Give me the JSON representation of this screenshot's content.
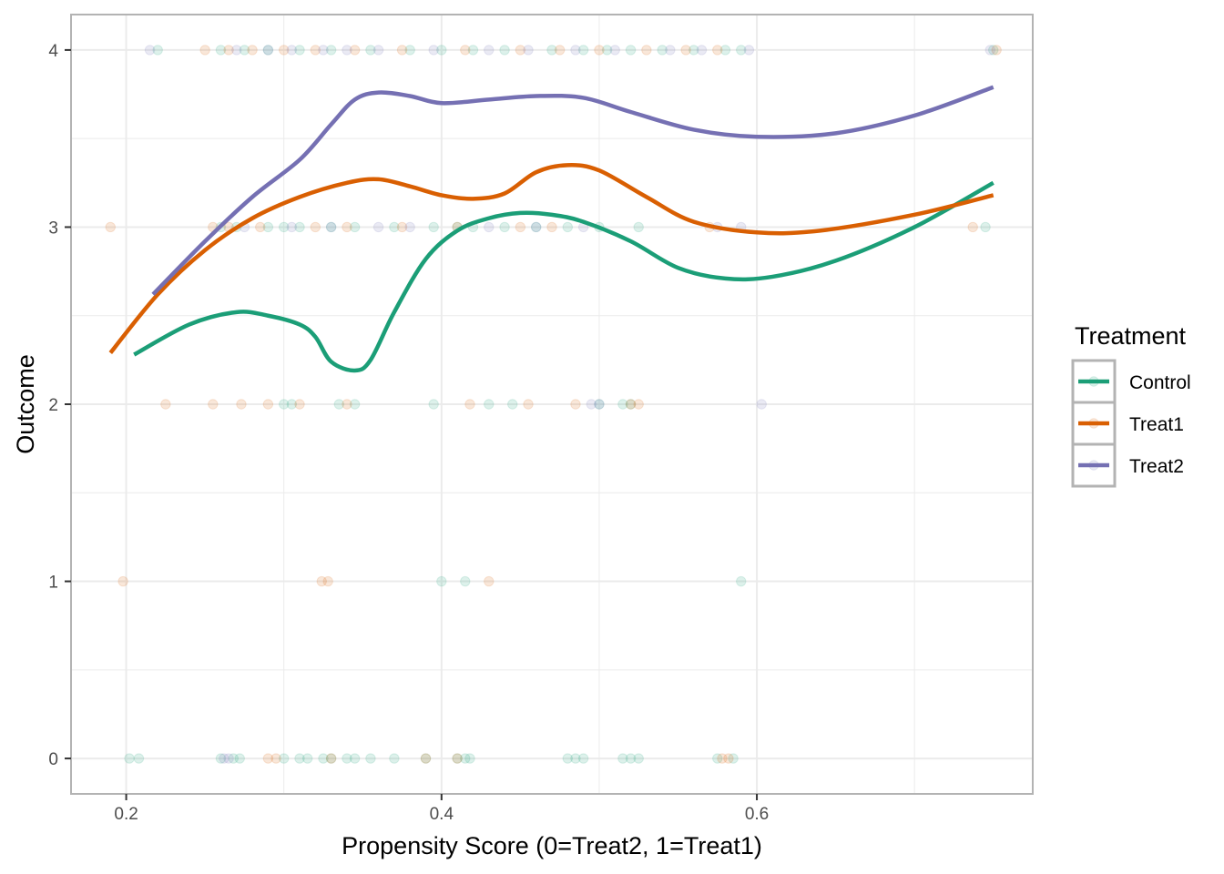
{
  "chart_data": {
    "type": "scatter",
    "xlabel": "Propensity Score (0=Treat2, 1=Treat1)",
    "ylabel": "Outcome",
    "xlim": [
      0.165,
      0.775
    ],
    "ylim": [
      -0.2,
      4.2
    ],
    "x_ticks": [
      0.2,
      0.4,
      0.6
    ],
    "x_tick_labels": [
      "0.2",
      "0.4",
      "0.6"
    ],
    "y_ticks": [
      0,
      1,
      2,
      3,
      4
    ],
    "y_tick_labels": [
      "0",
      "1",
      "2",
      "3",
      "4"
    ],
    "grid": true,
    "legend": {
      "title": "Treatment",
      "position": "right",
      "entries": [
        "Control",
        "Treat1",
        "Treat2"
      ]
    },
    "colors": {
      "Control": "#1b9e77",
      "Treat1": "#d95f02",
      "Treat2": "#7570b3"
    },
    "point_alpha": 0.15,
    "smooth_series": [
      {
        "name": "Control",
        "color": "#1b9e77",
        "x": [
          0.205,
          0.24,
          0.27,
          0.29,
          0.31,
          0.32,
          0.33,
          0.345,
          0.355,
          0.37,
          0.39,
          0.41,
          0.43,
          0.45,
          0.47,
          0.49,
          0.52,
          0.55,
          0.58,
          0.61,
          0.65,
          0.7,
          0.75
        ],
        "y": [
          2.28,
          2.45,
          2.52,
          2.5,
          2.45,
          2.38,
          2.24,
          2.19,
          2.25,
          2.52,
          2.82,
          2.98,
          3.05,
          3.08,
          3.07,
          3.03,
          2.92,
          2.77,
          2.71,
          2.72,
          2.81,
          3.0,
          3.25
        ]
      },
      {
        "name": "Treat1",
        "color": "#d95f02",
        "x": [
          0.19,
          0.22,
          0.25,
          0.28,
          0.31,
          0.34,
          0.36,
          0.38,
          0.4,
          0.42,
          0.44,
          0.46,
          0.48,
          0.5,
          0.53,
          0.56,
          0.6,
          0.64,
          0.7,
          0.75
        ],
        "y": [
          2.29,
          2.62,
          2.87,
          3.05,
          3.17,
          3.25,
          3.27,
          3.23,
          3.18,
          3.16,
          3.19,
          3.31,
          3.35,
          3.32,
          3.17,
          3.03,
          2.97,
          2.98,
          3.07,
          3.18
        ]
      },
      {
        "name": "Treat2",
        "color": "#7570b3",
        "x": [
          0.217,
          0.25,
          0.28,
          0.31,
          0.33,
          0.345,
          0.36,
          0.38,
          0.4,
          0.43,
          0.46,
          0.49,
          0.52,
          0.56,
          0.6,
          0.65,
          0.7,
          0.75
        ],
        "y": [
          2.62,
          2.92,
          3.17,
          3.38,
          3.58,
          3.72,
          3.76,
          3.74,
          3.7,
          3.72,
          3.74,
          3.73,
          3.65,
          3.55,
          3.51,
          3.53,
          3.63,
          3.79
        ]
      }
    ],
    "points": [
      {
        "name": "Control",
        "color": "#1b9e77",
        "y_level": 0,
        "x": [
          0.202,
          0.208,
          0.26,
          0.268,
          0.272,
          0.3,
          0.31,
          0.315,
          0.325,
          0.33,
          0.34,
          0.345,
          0.355,
          0.37,
          0.39,
          0.41,
          0.415,
          0.418,
          0.48,
          0.485,
          0.49,
          0.515,
          0.52,
          0.525,
          0.575,
          0.585
        ]
      },
      {
        "name": "Treat1",
        "color": "#d95f02",
        "y_level": 0,
        "x": [
          0.29,
          0.295,
          0.33,
          0.39,
          0.41,
          0.578,
          0.582
        ]
      },
      {
        "name": "Treat2",
        "color": "#7570b3",
        "y_level": 0,
        "x": [
          0.262,
          0.265
        ]
      },
      {
        "name": "Control",
        "color": "#1b9e77",
        "y_level": 1,
        "x": [
          0.4,
          0.415,
          0.59
        ]
      },
      {
        "name": "Treat1",
        "color": "#d95f02",
        "y_level": 1,
        "x": [
          0.198,
          0.324,
          0.328,
          0.43
        ]
      },
      {
        "name": "Control",
        "color": "#1b9e77",
        "y_level": 2,
        "x": [
          0.3,
          0.305,
          0.335,
          0.345,
          0.395,
          0.43,
          0.445,
          0.5,
          0.515,
          0.52
        ]
      },
      {
        "name": "Treat1",
        "color": "#d95f02",
        "y_level": 2,
        "x": [
          0.225,
          0.255,
          0.273,
          0.29,
          0.31,
          0.34,
          0.418,
          0.455,
          0.485,
          0.52,
          0.525
        ]
      },
      {
        "name": "Treat2",
        "color": "#7570b3",
        "y_level": 2,
        "x": [
          0.495,
          0.5,
          0.603
        ]
      },
      {
        "name": "Control",
        "color": "#1b9e77",
        "y_level": 3,
        "x": [
          0.26,
          0.27,
          0.29,
          0.3,
          0.31,
          0.33,
          0.345,
          0.37,
          0.395,
          0.41,
          0.42,
          0.44,
          0.46,
          0.48,
          0.5,
          0.525,
          0.745
        ]
      },
      {
        "name": "Treat1",
        "color": "#d95f02",
        "y_level": 3,
        "x": [
          0.19,
          0.255,
          0.265,
          0.285,
          0.32,
          0.34,
          0.375,
          0.41,
          0.45,
          0.47,
          0.57,
          0.737
        ]
      },
      {
        "name": "Treat2",
        "color": "#7570b3",
        "y_level": 3,
        "x": [
          0.275,
          0.305,
          0.33,
          0.36,
          0.38,
          0.43,
          0.46,
          0.49,
          0.575,
          0.59
        ]
      },
      {
        "name": "Control",
        "color": "#1b9e77",
        "y_level": 4,
        "x": [
          0.22,
          0.26,
          0.275,
          0.29,
          0.31,
          0.33,
          0.355,
          0.38,
          0.4,
          0.42,
          0.44,
          0.47,
          0.49,
          0.505,
          0.52,
          0.54,
          0.56,
          0.58,
          0.59,
          0.75
        ]
      },
      {
        "name": "Treat1",
        "color": "#d95f02",
        "y_level": 4,
        "x": [
          0.25,
          0.265,
          0.28,
          0.3,
          0.32,
          0.345,
          0.375,
          0.415,
          0.45,
          0.475,
          0.5,
          0.53,
          0.555,
          0.575,
          0.752
        ]
      },
      {
        "name": "Treat2",
        "color": "#7570b3",
        "y_level": 4,
        "x": [
          0.215,
          0.27,
          0.29,
          0.305,
          0.325,
          0.34,
          0.36,
          0.395,
          0.43,
          0.455,
          0.485,
          0.51,
          0.545,
          0.565,
          0.595,
          0.748
        ]
      }
    ]
  }
}
